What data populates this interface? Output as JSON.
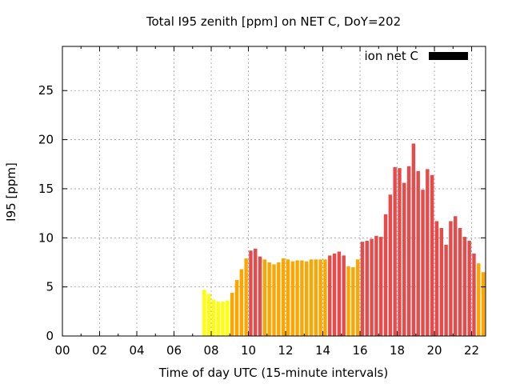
{
  "chart_data": {
    "type": "bar",
    "title": "Total I95 zenith [ppm] on NET C, DoY=202",
    "xlabel": "Time of day UTC (15-minute intervals)",
    "ylabel": "I95 [ppm]",
    "xlim": [
      0,
      22.75
    ],
    "ylim": [
      0,
      29.5
    ],
    "x_ticks": [
      {
        "value": 0,
        "label": "00"
      },
      {
        "value": 2,
        "label": "02"
      },
      {
        "value": 4,
        "label": "04"
      },
      {
        "value": 6,
        "label": "06"
      },
      {
        "value": 8,
        "label": "08"
      },
      {
        "value": 10,
        "label": "10"
      },
      {
        "value": 12,
        "label": "12"
      },
      {
        "value": 14,
        "label": "14"
      },
      {
        "value": 16,
        "label": "16"
      },
      {
        "value": 18,
        "label": "18"
      },
      {
        "value": 20,
        "label": "20"
      },
      {
        "value": 22,
        "label": "22"
      }
    ],
    "y_ticks": [
      {
        "value": 0,
        "label": "0"
      },
      {
        "value": 5,
        "label": "5"
      },
      {
        "value": 10,
        "label": "10"
      },
      {
        "value": 15,
        "label": "15"
      },
      {
        "value": 20,
        "label": "20"
      },
      {
        "value": 25,
        "label": "25"
      }
    ],
    "grid": true,
    "legend": {
      "entries": [
        {
          "name": "ion net C",
          "color": "#000000"
        }
      ],
      "placement": "top-right"
    },
    "series": [
      {
        "name": "ion net C",
        "x": [
          7.5,
          7.75,
          8.0,
          8.25,
          8.5,
          8.75,
          9.0,
          9.25,
          9.5,
          9.75,
          10.0,
          10.25,
          10.5,
          10.75,
          11.0,
          11.25,
          11.5,
          11.75,
          12.0,
          12.25,
          12.5,
          12.75,
          13.0,
          13.25,
          13.5,
          13.75,
          14.0,
          14.25,
          14.5,
          14.75,
          15.0,
          15.25,
          15.5,
          15.75,
          16.0,
          16.25,
          16.5,
          16.75,
          17.0,
          17.25,
          17.5,
          17.75,
          18.0,
          18.25,
          18.5,
          18.75,
          19.0,
          19.25,
          19.5,
          19.75,
          20.0,
          20.25,
          20.5,
          20.75,
          21.0,
          21.25,
          21.5,
          21.75,
          22.0,
          22.25,
          22.5
        ],
        "values": [
          4.7,
          4.3,
          3.7,
          3.5,
          3.5,
          3.6,
          4.4,
          5.7,
          6.8,
          7.9,
          8.7,
          8.9,
          8.1,
          7.8,
          7.5,
          7.3,
          7.5,
          7.9,
          7.8,
          7.6,
          7.7,
          7.7,
          7.6,
          7.8,
          7.8,
          7.8,
          7.8,
          8.2,
          8.4,
          8.6,
          8.2,
          7.1,
          7.0,
          7.8,
          9.6,
          9.7,
          9.9,
          10.2,
          10.1,
          12.4,
          14.4,
          17.2,
          17.1,
          15.6,
          17.3,
          19.6,
          16.8,
          14.9,
          17.0,
          16.4,
          11.7,
          11.0,
          9.3,
          11.7,
          12.2,
          11.0,
          10.1,
          9.7,
          8.4,
          7.4,
          6.5
        ],
        "colors": [
          "#ffff00",
          "#ffff00",
          "#ffff00",
          "#ffff00",
          "#ffff00",
          "#ffff00",
          "#ffa500",
          "#ffa500",
          "#ffa500",
          "#ffa500",
          "#e84a4a",
          "#e84a4a",
          "#e84a4a",
          "#ffa500",
          "#ffa500",
          "#ffa500",
          "#ffa500",
          "#ffa500",
          "#ffa500",
          "#ffa500",
          "#ffa500",
          "#ffa500",
          "#ffa500",
          "#ffa500",
          "#ffa500",
          "#ffa500",
          "#ffa500",
          "#e84a4a",
          "#e84a4a",
          "#e84a4a",
          "#e84a4a",
          "#ffa500",
          "#ffa500",
          "#ffa500",
          "#e84a4a",
          "#e84a4a",
          "#e84a4a",
          "#e84a4a",
          "#e84a4a",
          "#e84a4a",
          "#e84a4a",
          "#e84a4a",
          "#e84a4a",
          "#e84a4a",
          "#e84a4a",
          "#e84a4a",
          "#e84a4a",
          "#e84a4a",
          "#e84a4a",
          "#e84a4a",
          "#e84a4a",
          "#e84a4a",
          "#e84a4a",
          "#e84a4a",
          "#e84a4a",
          "#e84a4a",
          "#e84a4a",
          "#e84a4a",
          "#e84a4a",
          "#ffa500",
          "#ffa500"
        ]
      }
    ]
  }
}
